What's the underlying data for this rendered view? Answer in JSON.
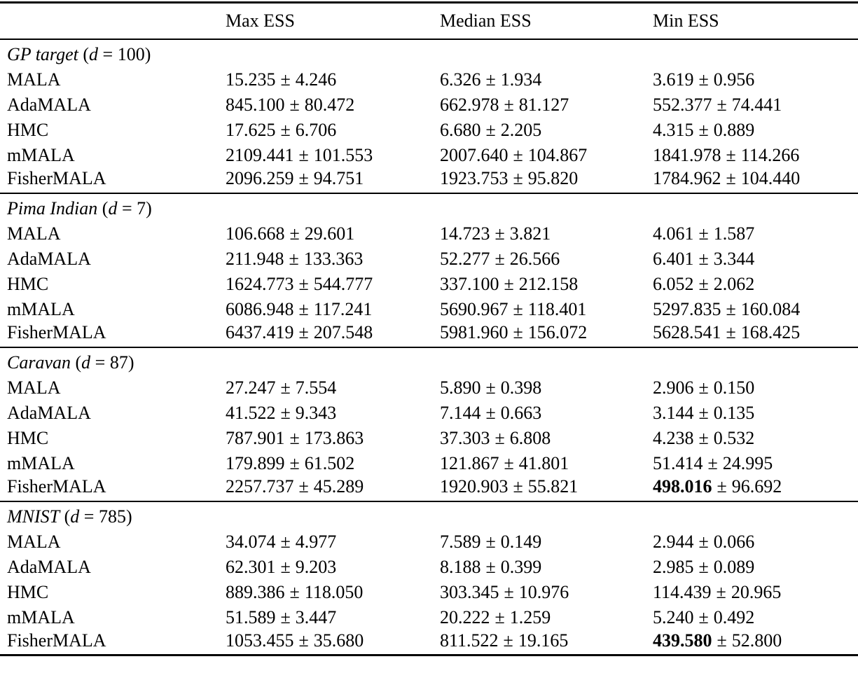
{
  "table": {
    "pm": "±",
    "punct": {
      "open": "(",
      "eq": "=",
      "close": ")"
    },
    "columns": [
      "",
      "Max ESS",
      "Median ESS",
      "Min ESS"
    ],
    "sections": [
      {
        "title": {
          "name": "GP target",
          "var": "d",
          "value": "100"
        },
        "rows": [
          {
            "method": "MALA",
            "cells": [
              {
                "v": "15.235",
                "e": "4.246"
              },
              {
                "v": "6.326",
                "e": "1.934"
              },
              {
                "v": "3.619",
                "e": "0.956"
              }
            ]
          },
          {
            "method": "AdaMALA",
            "cells": [
              {
                "v": "845.100",
                "e": "80.472"
              },
              {
                "v": "662.978",
                "e": "81.127"
              },
              {
                "v": "552.377",
                "e": "74.441"
              }
            ]
          },
          {
            "method": "HMC",
            "cells": [
              {
                "v": "17.625",
                "e": "6.706"
              },
              {
                "v": "6.680",
                "e": "2.205"
              },
              {
                "v": "4.315",
                "e": "0.889"
              }
            ]
          },
          {
            "method": "mMALA",
            "cells": [
              {
                "v": "2109.441",
                "e": "101.553"
              },
              {
                "v": "2007.640",
                "e": "104.867"
              },
              {
                "v": "1841.978",
                "e": "114.266"
              }
            ]
          },
          {
            "method": "FisherMALA",
            "cells": [
              {
                "v": "2096.259",
                "e": "94.751"
              },
              {
                "v": "1923.753",
                "e": "95.820"
              },
              {
                "v": "1784.962",
                "e": "104.440"
              }
            ]
          }
        ]
      },
      {
        "title": {
          "name": "Pima Indian",
          "var": "d",
          "value": "7"
        },
        "rows": [
          {
            "method": "MALA",
            "cells": [
              {
                "v": "106.668",
                "e": "29.601"
              },
              {
                "v": "14.723",
                "e": "3.821"
              },
              {
                "v": "4.061",
                "e": "1.587"
              }
            ]
          },
          {
            "method": "AdaMALA",
            "cells": [
              {
                "v": "211.948",
                "e": "133.363"
              },
              {
                "v": "52.277",
                "e": "26.566"
              },
              {
                "v": "6.401",
                "e": "3.344"
              }
            ]
          },
          {
            "method": "HMC",
            "cells": [
              {
                "v": "1624.773",
                "e": "544.777"
              },
              {
                "v": "337.100",
                "e": "212.158"
              },
              {
                "v": "6.052",
                "e": "2.062"
              }
            ]
          },
          {
            "method": "mMALA",
            "cells": [
              {
                "v": "6086.948",
                "e": "117.241"
              },
              {
                "v": "5690.967",
                "e": "118.401"
              },
              {
                "v": "5297.835",
                "e": "160.084"
              }
            ]
          },
          {
            "method": "FisherMALA",
            "cells": [
              {
                "v": "6437.419",
                "e": "207.548"
              },
              {
                "v": "5981.960",
                "e": "156.072"
              },
              {
                "v": "5628.541",
                "e": "168.425"
              }
            ]
          }
        ]
      },
      {
        "title": {
          "name": "Caravan",
          "var": "d",
          "value": "87"
        },
        "rows": [
          {
            "method": "MALA",
            "cells": [
              {
                "v": "27.247",
                "e": "7.554"
              },
              {
                "v": "5.890",
                "e": "0.398"
              },
              {
                "v": "2.906",
                "e": "0.150"
              }
            ]
          },
          {
            "method": "AdaMALA",
            "cells": [
              {
                "v": "41.522",
                "e": "9.343"
              },
              {
                "v": "7.144",
                "e": "0.663"
              },
              {
                "v": "3.144",
                "e": "0.135"
              }
            ]
          },
          {
            "method": "HMC",
            "cells": [
              {
                "v": "787.901",
                "e": "173.863"
              },
              {
                "v": "37.303",
                "e": "6.808"
              },
              {
                "v": "4.238",
                "e": "0.532"
              }
            ]
          },
          {
            "method": "mMALA",
            "cells": [
              {
                "v": "179.899",
                "e": "61.502"
              },
              {
                "v": "121.867",
                "e": "41.801"
              },
              {
                "v": "51.414",
                "e": "24.995"
              }
            ]
          },
          {
            "method": "FisherMALA",
            "cells": [
              {
                "v": "2257.737",
                "e": "45.289"
              },
              {
                "v": "1920.903",
                "e": "55.821"
              },
              {
                "v": "498.016",
                "e": "96.692",
                "bold": true
              }
            ]
          }
        ]
      },
      {
        "title": {
          "name": "MNIST",
          "var": "d",
          "value": "785"
        },
        "rows": [
          {
            "method": "MALA",
            "cells": [
              {
                "v": "34.074",
                "e": "4.977"
              },
              {
                "v": "7.589",
                "e": "0.149"
              },
              {
                "v": "2.944",
                "e": "0.066"
              }
            ]
          },
          {
            "method": "AdaMALA",
            "cells": [
              {
                "v": "62.301",
                "e": "9.203"
              },
              {
                "v": "8.188",
                "e": "0.399"
              },
              {
                "v": "2.985",
                "e": "0.089"
              }
            ]
          },
          {
            "method": "HMC",
            "cells": [
              {
                "v": "889.386",
                "e": "118.050"
              },
              {
                "v": "303.345",
                "e": "10.976"
              },
              {
                "v": "114.439",
                "e": "20.965"
              }
            ]
          },
          {
            "method": "mMALA",
            "cells": [
              {
                "v": "51.589",
                "e": "3.447"
              },
              {
                "v": "20.222",
                "e": "1.259"
              },
              {
                "v": "5.240",
                "e": "0.492"
              }
            ]
          },
          {
            "method": "FisherMALA",
            "cells": [
              {
                "v": "1053.455",
                "e": "35.680"
              },
              {
                "v": "811.522",
                "e": "19.165"
              },
              {
                "v": "439.580",
                "e": "52.800",
                "bold": true
              }
            ]
          }
        ]
      }
    ]
  }
}
